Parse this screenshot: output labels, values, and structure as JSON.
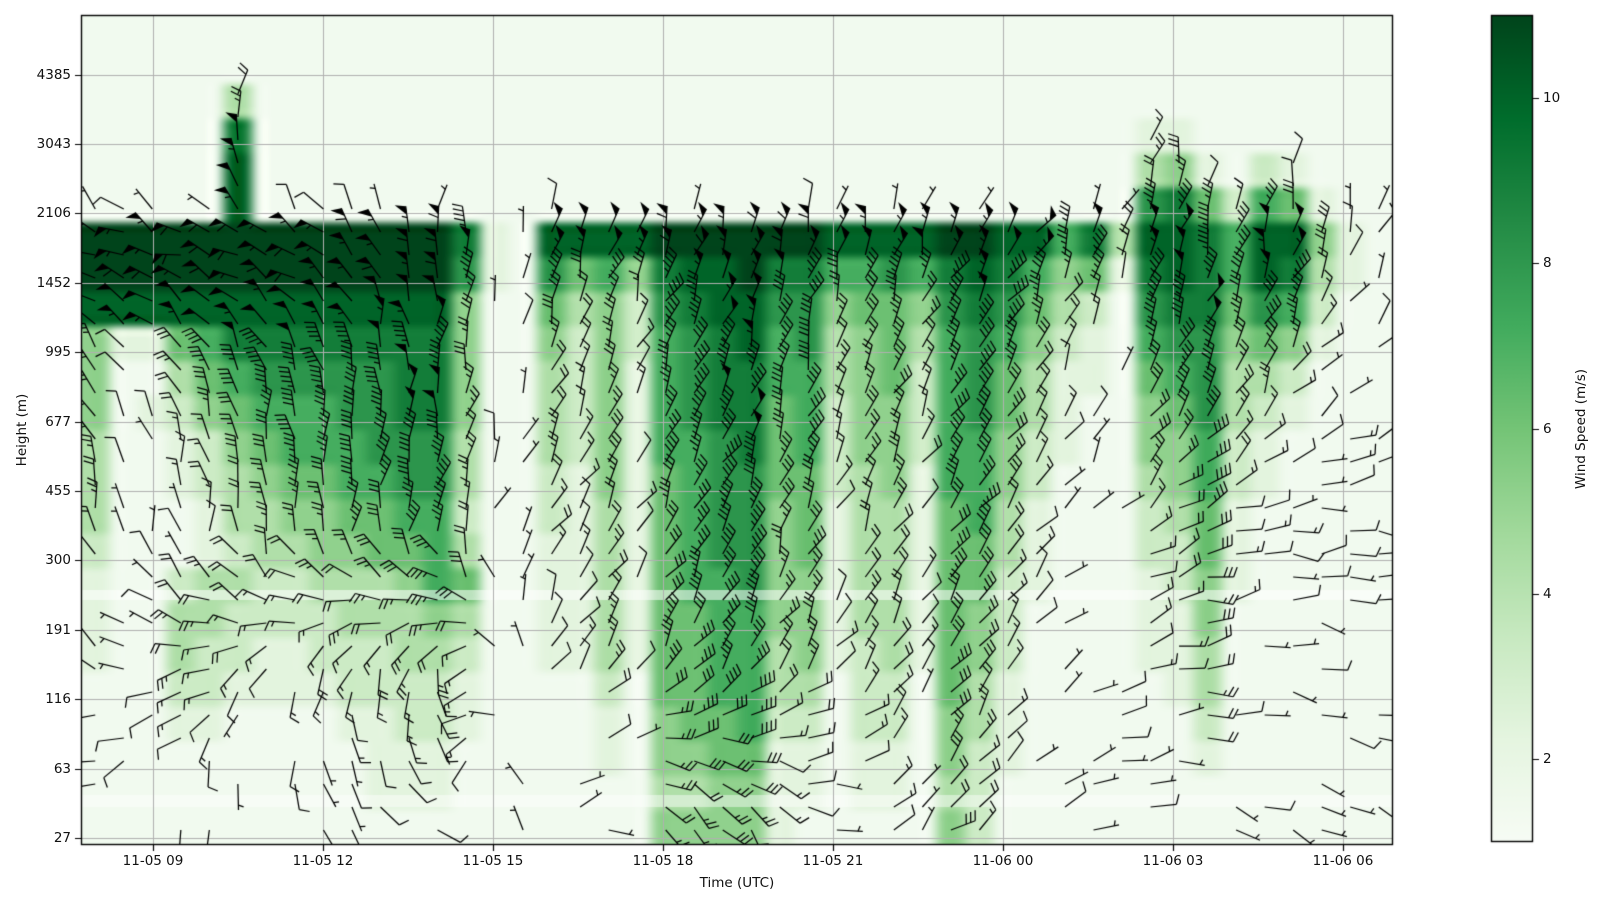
{
  "chart_data": {
    "type": "heatmap",
    "subtype": "time-height wind profile with wind barbs",
    "title": "",
    "xlabel": "Time (UTC)",
    "ylabel": "Height (m)",
    "colorbar_label": "Wind Speed (m/s)",
    "x_tick_labels": [
      "11-05 09",
      "11-05 12",
      "11-05 15",
      "11-05 18",
      "11-05 21",
      "11-06 00",
      "11-06 03",
      "11-06 06"
    ],
    "y_tick_labels": [
      "4385",
      "3043",
      "2106",
      "1452",
      "995",
      "677",
      "455",
      "300",
      "191",
      "116",
      "63",
      "27"
    ],
    "height_gates_m": [
      27,
      63,
      116,
      191,
      300,
      455,
      677,
      995,
      1452,
      2106,
      3043,
      4385
    ],
    "colorbar_tick_labels": [
      "10",
      "8",
      "6",
      "4",
      "2"
    ],
    "colorbar_tick_values": [
      10,
      8,
      6,
      4,
      2
    ],
    "speed_range_mps": [
      1,
      11
    ],
    "colormap": "Greens",
    "colormap_stops": [
      "#f7fcf5",
      "#e5f5e0",
      "#c7e9c0",
      "#a1d99b",
      "#74c476",
      "#41ab5d",
      "#238b45",
      "#006d2c",
      "#00441b"
    ],
    "grid_on": true,
    "time_start_utc": "11-05 07:45",
    "time_step_minutes": 30,
    "n_time_cols": 46,
    "grid_value_encoding": "one hex char per cell, 0-B = wind speed 0-11 m/s, columns are 30-min steps left to right",
    "speed_grid_rows_top_to_bottom": [
      "1111111111111111111111111111111111111111111111",
      "1111111111111111111111111111111111111111111111",
      "1111141111111111111111111111111111111111111111",
      "1111191111111111111111111111111111111221111111",
      "11111A1111111111111111111111111111111452132111",
      "11111A1111111111111111111111111111111896376211",
      "BBBBBBBBBBBBB921AAAABBBBBBAAAABBAA794AA97AA521",
      "BBBBBBBBBBBBB82186759AAB9977879A975629A97A9421",
      "AAAAAAAAAAAAA511645389AA8856658986431899687311",
      "52267999999995115353789A7845647875321788565211",
      "51146788888995114352789977456378642216784 43111",
      "5123567778899511435278996735537864211568432111",
      "4112356777888411435277896735537753211557321111",
      "4112345667788411325267886634527753111457321111",
      "4111244556677311324267885624426742111346211111",
      "3111234455667411224267885624426642111336211111",
      "2113443344457611224267785524426632111235211111",
      "2114433334445411224266775524426531111225111111",
      "2114332233344311224266774523426531111224111111",
      "1113322223333211113166774413316421111124111111",
      "1112211112233211112156673313315421111113111111",
      "1111111111222111112155662212215321111112111111",
      "1111111111222111111144552212214311111111111111",
      "1111111111111111111155552111115311111111111111"
    ],
    "wind_dir_deg": {
      "comment": "barb tail direction (deg CCW from east), bilinear field",
      "time_centers_hours_utc": [
        8,
        10,
        12,
        14,
        16,
        18,
        20,
        22,
        24,
        26,
        28,
        30
      ],
      "height_index_centers": [
        0.5,
        2.5,
        4.5,
        6.5,
        8.5,
        10.5
      ],
      "rows_low_to_high": [
        [
          220,
          280,
          300,
          310,
          45,
          -50,
          -45,
          40,
          45,
          10,
          -15,
          -20
        ],
        [
          150,
          200,
          240,
          260,
          60,
          55,
          60,
          55,
          50,
          20,
          -5,
          -10
        ],
        [
          100,
          95,
          85,
          75,
          60,
          60,
          65,
          60,
          55,
          40,
          10,
          0
        ],
        [
          120,
          110,
          95,
          85,
          70,
          65,
          70,
          65,
          60,
          65,
          70,
          30
        ],
        [
          160,
          165,
          150,
          90,
          70,
          70,
          75,
          70,
          60,
          70,
          75,
          70
        ],
        [
          70,
          70,
          70,
          70,
          70,
          70,
          70,
          70,
          70,
          70,
          75,
          70
        ]
      ]
    },
    "legend_position": "colorbar right",
    "axis_color": "#000000",
    "gridline_color": "#b0b0b0",
    "barb_color": "#000000"
  }
}
